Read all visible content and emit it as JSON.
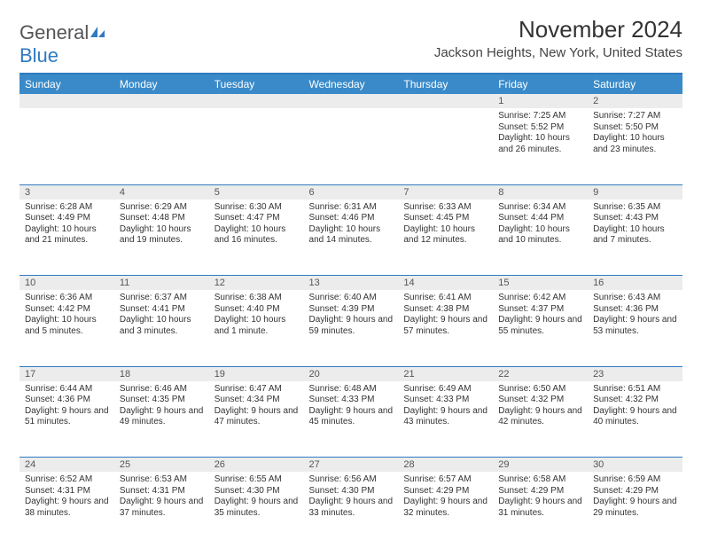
{
  "logo": {
    "word1": "General",
    "word2": "Blue"
  },
  "title": "November 2024",
  "location": "Jackson Heights, New York, United States",
  "colors": {
    "header_bg": "#3a8ac9",
    "divider": "#2f7ac0",
    "daynum_bg": "#ececec",
    "text": "#333333",
    "logo_gray": "#555555",
    "logo_blue": "#2f7ac0"
  },
  "day_labels": [
    "Sunday",
    "Monday",
    "Tuesday",
    "Wednesday",
    "Thursday",
    "Friday",
    "Saturday"
  ],
  "weeks": [
    [
      null,
      null,
      null,
      null,
      null,
      {
        "n": "1",
        "sunrise": "Sunrise: 7:25 AM",
        "sunset": "Sunset: 5:52 PM",
        "daylight": "Daylight: 10 hours and 26 minutes."
      },
      {
        "n": "2",
        "sunrise": "Sunrise: 7:27 AM",
        "sunset": "Sunset: 5:50 PM",
        "daylight": "Daylight: 10 hours and 23 minutes."
      }
    ],
    [
      {
        "n": "3",
        "sunrise": "Sunrise: 6:28 AM",
        "sunset": "Sunset: 4:49 PM",
        "daylight": "Daylight: 10 hours and 21 minutes."
      },
      {
        "n": "4",
        "sunrise": "Sunrise: 6:29 AM",
        "sunset": "Sunset: 4:48 PM",
        "daylight": "Daylight: 10 hours and 19 minutes."
      },
      {
        "n": "5",
        "sunrise": "Sunrise: 6:30 AM",
        "sunset": "Sunset: 4:47 PM",
        "daylight": "Daylight: 10 hours and 16 minutes."
      },
      {
        "n": "6",
        "sunrise": "Sunrise: 6:31 AM",
        "sunset": "Sunset: 4:46 PM",
        "daylight": "Daylight: 10 hours and 14 minutes."
      },
      {
        "n": "7",
        "sunrise": "Sunrise: 6:33 AM",
        "sunset": "Sunset: 4:45 PM",
        "daylight": "Daylight: 10 hours and 12 minutes."
      },
      {
        "n": "8",
        "sunrise": "Sunrise: 6:34 AM",
        "sunset": "Sunset: 4:44 PM",
        "daylight": "Daylight: 10 hours and 10 minutes."
      },
      {
        "n": "9",
        "sunrise": "Sunrise: 6:35 AM",
        "sunset": "Sunset: 4:43 PM",
        "daylight": "Daylight: 10 hours and 7 minutes."
      }
    ],
    [
      {
        "n": "10",
        "sunrise": "Sunrise: 6:36 AM",
        "sunset": "Sunset: 4:42 PM",
        "daylight": "Daylight: 10 hours and 5 minutes."
      },
      {
        "n": "11",
        "sunrise": "Sunrise: 6:37 AM",
        "sunset": "Sunset: 4:41 PM",
        "daylight": "Daylight: 10 hours and 3 minutes."
      },
      {
        "n": "12",
        "sunrise": "Sunrise: 6:38 AM",
        "sunset": "Sunset: 4:40 PM",
        "daylight": "Daylight: 10 hours and 1 minute."
      },
      {
        "n": "13",
        "sunrise": "Sunrise: 6:40 AM",
        "sunset": "Sunset: 4:39 PM",
        "daylight": "Daylight: 9 hours and 59 minutes."
      },
      {
        "n": "14",
        "sunrise": "Sunrise: 6:41 AM",
        "sunset": "Sunset: 4:38 PM",
        "daylight": "Daylight: 9 hours and 57 minutes."
      },
      {
        "n": "15",
        "sunrise": "Sunrise: 6:42 AM",
        "sunset": "Sunset: 4:37 PM",
        "daylight": "Daylight: 9 hours and 55 minutes."
      },
      {
        "n": "16",
        "sunrise": "Sunrise: 6:43 AM",
        "sunset": "Sunset: 4:36 PM",
        "daylight": "Daylight: 9 hours and 53 minutes."
      }
    ],
    [
      {
        "n": "17",
        "sunrise": "Sunrise: 6:44 AM",
        "sunset": "Sunset: 4:36 PM",
        "daylight": "Daylight: 9 hours and 51 minutes."
      },
      {
        "n": "18",
        "sunrise": "Sunrise: 6:46 AM",
        "sunset": "Sunset: 4:35 PM",
        "daylight": "Daylight: 9 hours and 49 minutes."
      },
      {
        "n": "19",
        "sunrise": "Sunrise: 6:47 AM",
        "sunset": "Sunset: 4:34 PM",
        "daylight": "Daylight: 9 hours and 47 minutes."
      },
      {
        "n": "20",
        "sunrise": "Sunrise: 6:48 AM",
        "sunset": "Sunset: 4:33 PM",
        "daylight": "Daylight: 9 hours and 45 minutes."
      },
      {
        "n": "21",
        "sunrise": "Sunrise: 6:49 AM",
        "sunset": "Sunset: 4:33 PM",
        "daylight": "Daylight: 9 hours and 43 minutes."
      },
      {
        "n": "22",
        "sunrise": "Sunrise: 6:50 AM",
        "sunset": "Sunset: 4:32 PM",
        "daylight": "Daylight: 9 hours and 42 minutes."
      },
      {
        "n": "23",
        "sunrise": "Sunrise: 6:51 AM",
        "sunset": "Sunset: 4:32 PM",
        "daylight": "Daylight: 9 hours and 40 minutes."
      }
    ],
    [
      {
        "n": "24",
        "sunrise": "Sunrise: 6:52 AM",
        "sunset": "Sunset: 4:31 PM",
        "daylight": "Daylight: 9 hours and 38 minutes."
      },
      {
        "n": "25",
        "sunrise": "Sunrise: 6:53 AM",
        "sunset": "Sunset: 4:31 PM",
        "daylight": "Daylight: 9 hours and 37 minutes."
      },
      {
        "n": "26",
        "sunrise": "Sunrise: 6:55 AM",
        "sunset": "Sunset: 4:30 PM",
        "daylight": "Daylight: 9 hours and 35 minutes."
      },
      {
        "n": "27",
        "sunrise": "Sunrise: 6:56 AM",
        "sunset": "Sunset: 4:30 PM",
        "daylight": "Daylight: 9 hours and 33 minutes."
      },
      {
        "n": "28",
        "sunrise": "Sunrise: 6:57 AM",
        "sunset": "Sunset: 4:29 PM",
        "daylight": "Daylight: 9 hours and 32 minutes."
      },
      {
        "n": "29",
        "sunrise": "Sunrise: 6:58 AM",
        "sunset": "Sunset: 4:29 PM",
        "daylight": "Daylight: 9 hours and 31 minutes."
      },
      {
        "n": "30",
        "sunrise": "Sunrise: 6:59 AM",
        "sunset": "Sunset: 4:29 PM",
        "daylight": "Daylight: 9 hours and 29 minutes."
      }
    ]
  ]
}
